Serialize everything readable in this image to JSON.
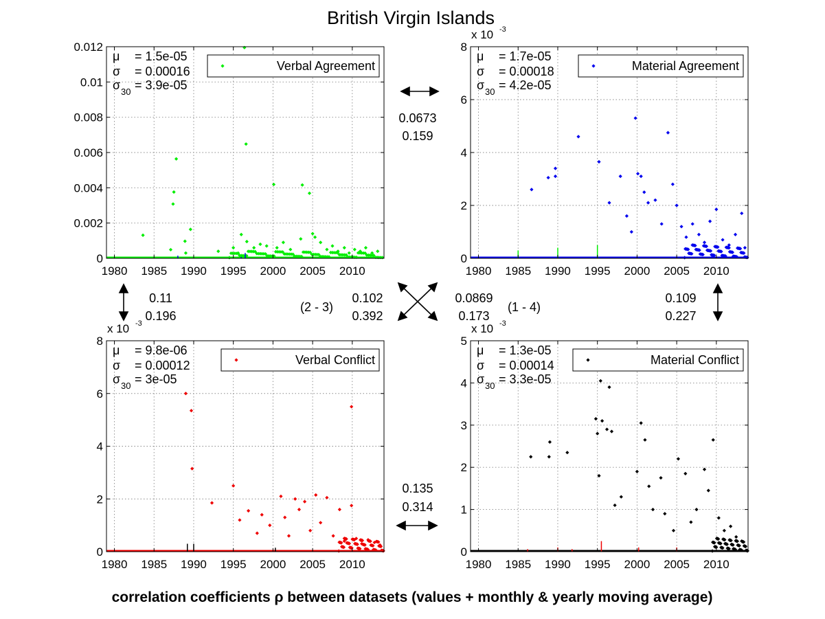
{
  "title": "British Virgin Islands",
  "footer": "correlation coefficients ρ between datasets (values + monthly & yearly moving average)",
  "colors": {
    "green": "#00ee00",
    "blue": "#0000ee",
    "red": "#ee0000",
    "black": "#000000"
  },
  "correlations": {
    "top": {
      "a": "0.0673",
      "b": "0.159"
    },
    "left": {
      "a": "0.11",
      "b": "0.196"
    },
    "right": {
      "a": "0.109",
      "b": "0.227"
    },
    "diag23": {
      "tag": "(2 - 3)",
      "a": "0.102",
      "b": "0.392"
    },
    "diag14": {
      "tag": "(1 - 4)",
      "a": "0.0869",
      "b": "0.173"
    },
    "bottom": {
      "a": "0.135",
      "b": "0.314"
    }
  },
  "chart_data": [
    {
      "type": "scatter",
      "name": "Verbal Agreement",
      "color": "#00ee00",
      "stats": {
        "mu_label": "μ",
        "mu": "= 1.5e-05",
        "sigma_label": "σ",
        "sigma": "= 0.00016",
        "sigma30_label": "σ",
        "sigma30_sub": "30",
        "sigma30": "= 3.9e-05"
      },
      "xlim": [
        1979,
        2014
      ],
      "ylim": [
        0,
        0.012
      ],
      "xticks": [
        1980,
        1985,
        1990,
        1995,
        2000,
        2005,
        2010
      ],
      "yticks": [
        0,
        0.002,
        0.004,
        0.006,
        0.008,
        0.01,
        0.012
      ],
      "ytick_labels": [
        "0",
        "0.002",
        "0.004",
        "0.006",
        "0.008",
        "0.01",
        "0.012"
      ],
      "exponent_label": "",
      "points": [
        [
          1983.6,
          0.00131
        ],
        [
          1987.4,
          0.00308
        ],
        [
          1987.5,
          0.00376
        ],
        [
          1987.8,
          0.00564
        ],
        [
          1987.1,
          0.00049
        ],
        [
          1988.9,
          0.00097
        ],
        [
          1989.6,
          0.00164
        ],
        [
          1989.0,
          0.0003
        ],
        [
          1993.1,
          0.0004
        ],
        [
          1995.0,
          0.0006
        ],
        [
          1995.6,
          0.0003
        ],
        [
          1996.0,
          0.00135
        ],
        [
          1996.4,
          0.01195
        ],
        [
          1996.6,
          0.00648
        ],
        [
          1996.7,
          0.00095
        ],
        [
          1997.6,
          0.0006
        ],
        [
          1998.4,
          0.0008
        ],
        [
          1999.2,
          0.0007
        ],
        [
          2000.1,
          0.00419
        ],
        [
          2000.5,
          0.0006
        ],
        [
          2001.3,
          0.0009
        ],
        [
          2002.2,
          0.0005
        ],
        [
          2003.5,
          0.0011
        ],
        [
          2003.7,
          0.00416
        ],
        [
          2004.6,
          0.00369
        ],
        [
          2005.0,
          0.0014
        ],
        [
          2005.3,
          0.0012
        ],
        [
          2006.0,
          0.0009
        ],
        [
          2006.8,
          0.0005
        ],
        [
          2007.5,
          0.0007
        ],
        [
          2008.2,
          0.0004
        ],
        [
          2009.0,
          0.0006
        ],
        [
          2009.6,
          0.0003
        ],
        [
          2010.3,
          0.0005
        ],
        [
          2011.0,
          0.0004
        ],
        [
          2011.7,
          0.0006
        ],
        [
          2012.5,
          0.0003
        ],
        [
          2013.2,
          0.0004
        ]
      ],
      "overlay_points": [
        [
          1988.0,
          0.00015
        ],
        [
          1996.5,
          0.0003
        ],
        [
          1996.0,
          8e-05
        ]
      ],
      "overlay_color": "#0000ee",
      "baseline_color": "#00ee00"
    },
    {
      "type": "scatter",
      "name": "Material Agreement",
      "color": "#0000ee",
      "stats": {
        "mu_label": "μ",
        "mu": "= 1.7e-05",
        "sigma_label": "σ",
        "sigma": "= 0.00018",
        "sigma30_label": "σ",
        "sigma30_sub": "30",
        "sigma30": "= 4.2e-05"
      },
      "xlim": [
        1979,
        2014
      ],
      "ylim": [
        0,
        8
      ],
      "xticks": [
        1980,
        1985,
        1990,
        1995,
        2000,
        2005,
        2010
      ],
      "yticks": [
        0,
        2,
        4,
        6,
        8
      ],
      "ytick_labels": [
        "0",
        "2",
        "4",
        "6",
        "8"
      ],
      "exponent_label": "x 10",
      "exponent_power": "-3",
      "points": [
        [
          1986.7,
          2.6
        ],
        [
          1988.8,
          3.05
        ],
        [
          1989.7,
          3.1
        ],
        [
          1989.7,
          3.4
        ],
        [
          1992.6,
          4.6
        ],
        [
          1995.2,
          3.65
        ],
        [
          1996.5,
          2.1
        ],
        [
          1997.9,
          3.1
        ],
        [
          1998.7,
          1.6
        ],
        [
          1999.3,
          1.0
        ],
        [
          1999.8,
          5.3
        ],
        [
          2000.1,
          3.2
        ],
        [
          2000.5,
          3.1
        ],
        [
          2000.9,
          2.5
        ],
        [
          2001.4,
          2.1
        ],
        [
          2002.3,
          2.2
        ],
        [
          2003.1,
          1.3
        ],
        [
          2003.9,
          4.75
        ],
        [
          2004.5,
          2.8
        ],
        [
          2005.0,
          2.0
        ],
        [
          2005.6,
          1.2
        ],
        [
          2006.2,
          0.8
        ],
        [
          2007.0,
          1.3
        ],
        [
          2007.8,
          0.9
        ],
        [
          2008.5,
          0.6
        ],
        [
          2009.2,
          1.4
        ],
        [
          2010.0,
          1.85
        ],
        [
          2010.8,
          0.7
        ],
        [
          2011.6,
          0.5
        ],
        [
          2012.4,
          0.9
        ],
        [
          2013.2,
          1.7
        ],
        [
          2013.6,
          0.4
        ]
      ],
      "overlay_points": [
        [
          1985.0,
          0.3
        ],
        [
          1990.0,
          0.4
        ],
        [
          1995.0,
          0.5
        ]
      ],
      "overlay_color": "#00ee00",
      "baseline_color": "#0000ee"
    },
    {
      "type": "scatter",
      "name": "Verbal Conflict",
      "color": "#ee0000",
      "stats": {
        "mu_label": "μ",
        "mu": "= 9.8e-06",
        "sigma_label": "σ",
        "sigma": "= 0.00012",
        "sigma30_label": "σ",
        "sigma30_sub": "30",
        "sigma30": "= 3e-05"
      },
      "xlim": [
        1979,
        2014
      ],
      "ylim": [
        0,
        8
      ],
      "xticks": [
        1980,
        1985,
        1990,
        1995,
        2000,
        2005,
        2010
      ],
      "yticks": [
        0,
        2,
        4,
        6,
        8
      ],
      "ytick_labels": [
        "0",
        "2",
        "4",
        "6",
        "8"
      ],
      "exponent_label": "x 10",
      "exponent_power": "-3",
      "points": [
        [
          1989.0,
          6.0
        ],
        [
          1989.7,
          5.35
        ],
        [
          1989.8,
          3.15
        ],
        [
          1992.3,
          1.85
        ],
        [
          1995.0,
          2.5
        ],
        [
          1995.8,
          1.2
        ],
        [
          1996.9,
          1.55
        ],
        [
          1998.0,
          0.7
        ],
        [
          1998.6,
          1.4
        ],
        [
          1999.6,
          1.0
        ],
        [
          2001.0,
          2.1
        ],
        [
          2001.5,
          1.3
        ],
        [
          2002.0,
          0.6
        ],
        [
          2002.8,
          2.0
        ],
        [
          2003.3,
          1.6
        ],
        [
          2004.0,
          1.9
        ],
        [
          2004.7,
          0.8
        ],
        [
          2005.4,
          2.15
        ],
        [
          2006.0,
          1.1
        ],
        [
          2006.8,
          2.05
        ],
        [
          2007.6,
          0.6
        ],
        [
          2008.4,
          1.6
        ],
        [
          2009.0,
          0.4
        ],
        [
          2009.9,
          5.5
        ],
        [
          2009.9,
          1.75
        ],
        [
          2010.5,
          0.5
        ],
        [
          2011.2,
          0.3
        ],
        [
          2012.0,
          0.45
        ],
        [
          2012.8,
          0.35
        ],
        [
          2013.5,
          0.25
        ]
      ],
      "overlay_points": [
        [
          1989.2,
          0.3
        ],
        [
          1990.0,
          0.3
        ],
        [
          2000.3,
          0.15
        ]
      ],
      "overlay_color": "#000000",
      "baseline_color": "#ee0000"
    },
    {
      "type": "scatter",
      "name": "Material Conflict",
      "color": "#000000",
      "stats": {
        "mu_label": "μ",
        "mu": "= 1.3e-05",
        "sigma_label": "σ",
        "sigma": "= 0.00014",
        "sigma30_label": "σ",
        "sigma30_sub": "30",
        "sigma30": "= 3.3e-05"
      },
      "xlim": [
        1979,
        2014
      ],
      "ylim": [
        0,
        5
      ],
      "xticks": [
        1980,
        1985,
        1990,
        1995,
        2000,
        2005,
        2010
      ],
      "yticks": [
        0,
        1,
        2,
        3,
        4,
        5
      ],
      "ytick_labels": [
        "0",
        "1",
        "2",
        "3",
        "4",
        "5"
      ],
      "exponent_label": "x 10",
      "exponent_power": "-3",
      "points": [
        [
          1986.6,
          2.25
        ],
        [
          1988.9,
          2.25
        ],
        [
          1989.0,
          2.6
        ],
        [
          1991.2,
          2.35
        ],
        [
          1994.8,
          3.15
        ],
        [
          1995.0,
          2.8
        ],
        [
          1995.2,
          1.8
        ],
        [
          1995.4,
          4.05
        ],
        [
          1995.6,
          3.1
        ],
        [
          1996.2,
          2.9
        ],
        [
          1996.5,
          3.9
        ],
        [
          1996.8,
          2.85
        ],
        [
          1997.2,
          1.1
        ],
        [
          1998.0,
          1.3
        ],
        [
          2000.0,
          1.9
        ],
        [
          2000.5,
          3.05
        ],
        [
          2001.0,
          2.65
        ],
        [
          2001.5,
          1.55
        ],
        [
          2002.0,
          1.0
        ],
        [
          2003.0,
          1.75
        ],
        [
          2003.5,
          0.9
        ],
        [
          2004.6,
          0.5
        ],
        [
          2005.2,
          2.2
        ],
        [
          2006.1,
          1.85
        ],
        [
          2006.8,
          0.7
        ],
        [
          2007.5,
          1.0
        ],
        [
          2008.5,
          1.95
        ],
        [
          2009.0,
          1.45
        ],
        [
          2009.6,
          2.65
        ],
        [
          2010.3,
          0.8
        ],
        [
          2011.0,
          0.5
        ],
        [
          2011.8,
          0.6
        ],
        [
          2012.5,
          0.35
        ],
        [
          2013.2,
          0.25
        ]
      ],
      "overlay_points": [
        [
          1986.2,
          0.06
        ],
        [
          1990.0,
          0.1
        ],
        [
          1991.8,
          0.06
        ],
        [
          1995.5,
          0.25
        ],
        [
          2000.2,
          0.1
        ],
        [
          2005.0,
          0.1
        ]
      ],
      "overlay_color": "#ee0000",
      "baseline_color": "#000000"
    }
  ]
}
